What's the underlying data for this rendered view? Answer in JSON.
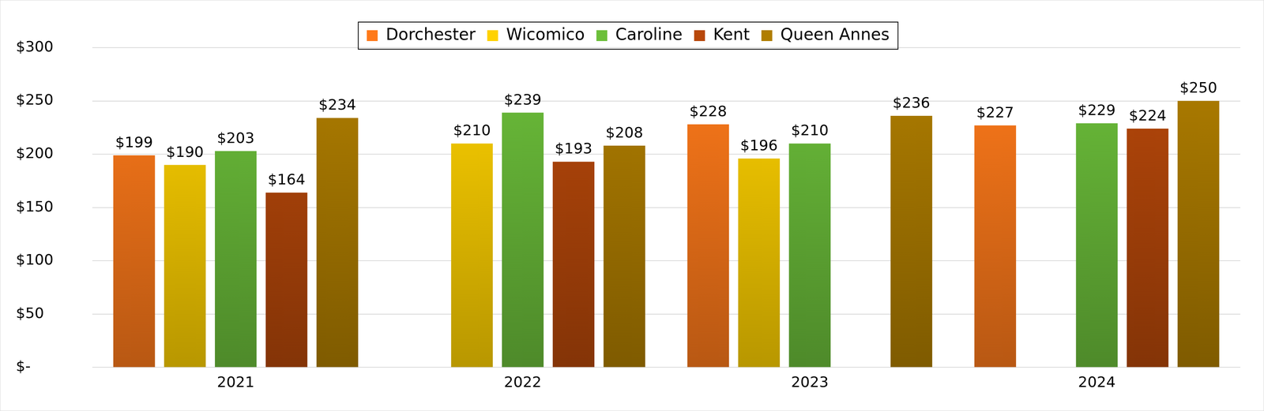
{
  "chart_data": {
    "type": "bar",
    "categories": [
      "2021",
      "2022",
      "2023",
      "2024"
    ],
    "series": [
      {
        "name": "Dorchester",
        "color": "#ff7a1a",
        "values": [
          199,
          null,
          228,
          227
        ],
        "value_labels": [
          "$199",
          null,
          "$228",
          "$227"
        ]
      },
      {
        "name": "Wicomico",
        "color": "#ffd200",
        "values": [
          190,
          210,
          196,
          null
        ],
        "value_labels": [
          "$190",
          "$210",
          "$196",
          null
        ]
      },
      {
        "name": "Caroline",
        "color": "#6cbf3a",
        "values": [
          203,
          239,
          210,
          229
        ],
        "value_labels": [
          "$203",
          "$239",
          "$210",
          "$229"
        ]
      },
      {
        "name": "Kent",
        "color": "#b8480a",
        "values": [
          164,
          193,
          null,
          224
        ],
        "value_labels": [
          "$164",
          "$193",
          null,
          "$224"
        ]
      },
      {
        "name": "Queen Annes",
        "color": "#b07e00",
        "values": [
          234,
          208,
          236,
          250
        ],
        "value_labels": [
          "$234",
          "$208",
          "$236",
          "$250"
        ]
      }
    ],
    "ylim": [
      0,
      300
    ],
    "yticks": [
      {
        "value": 0,
        "label": "$-"
      },
      {
        "value": 50,
        "label": "$50"
      },
      {
        "value": 100,
        "label": "$100"
      },
      {
        "value": 150,
        "label": "$150"
      },
      {
        "value": 200,
        "label": "$200"
      },
      {
        "value": 250,
        "label": "$250"
      },
      {
        "value": 300,
        "label": "$300"
      }
    ],
    "grid": true,
    "legend": "top",
    "data_labels": true
  }
}
